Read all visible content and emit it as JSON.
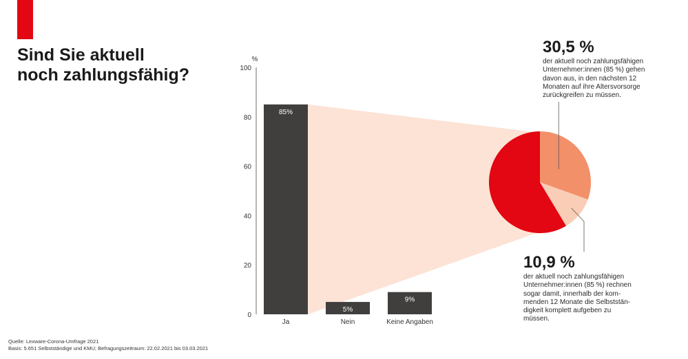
{
  "title_lines": [
    "Sind Sie aktuell",
    "noch zahlungsfähig?"
  ],
  "colors": {
    "brand": "#e30613",
    "bar": "#403f3d",
    "funnel": "#fce3d5",
    "pie_main": "#e30613",
    "pie_30": "#f2906a",
    "pie_10": "#f9cdb6"
  },
  "chart_data": {
    "type": "bar",
    "title": "Sind Sie aktuell noch zahlungsfähig?",
    "ylabel": "%",
    "ylim": [
      0,
      100
    ],
    "yticks": [
      0,
      20,
      40,
      60,
      80,
      100
    ],
    "categories": [
      "Ja",
      "Nein",
      "Keine Angaben"
    ],
    "values": [
      85,
      5,
      9
    ],
    "data_labels": [
      "85%",
      "5%",
      "9%"
    ],
    "grid": false,
    "breakdown": {
      "type": "pie",
      "of_category": "Ja",
      "slices": [
        {
          "value": 30.5,
          "label": "30,5 %"
        },
        {
          "value": 10.9,
          "label": "10,9 %"
        },
        {
          "value": 58.6,
          "label": ""
        }
      ]
    }
  },
  "annotations": {
    "top": {
      "value": "30,5 %",
      "lines": [
        "der aktuell noch zahlungsfähigen",
        "Unternehmer:innen (85 %) gehen",
        "davon aus, in den nächsten 12",
        "Monaten auf ihre Altersvorsorge",
        "zurückgreifen zu müssen."
      ]
    },
    "bottom": {
      "value": "10,9 %",
      "lines": [
        "der aktuell noch zahlungsfähigen",
        "Unternehmer:innen (85 %) rechnen",
        "sogar damit, innerhalb der kom-",
        "menden 12 Monate die Selbststän-",
        "digkeit komplett aufgeben zu",
        "müssen."
      ]
    }
  },
  "source_lines": [
    "Quelle: Lexware-Corona-Umfrage 2021",
    "Basis: 5.651 Selbstständige und KMU; Befragungszeitraum: 22.02.2021 bis 03.03.2021"
  ]
}
